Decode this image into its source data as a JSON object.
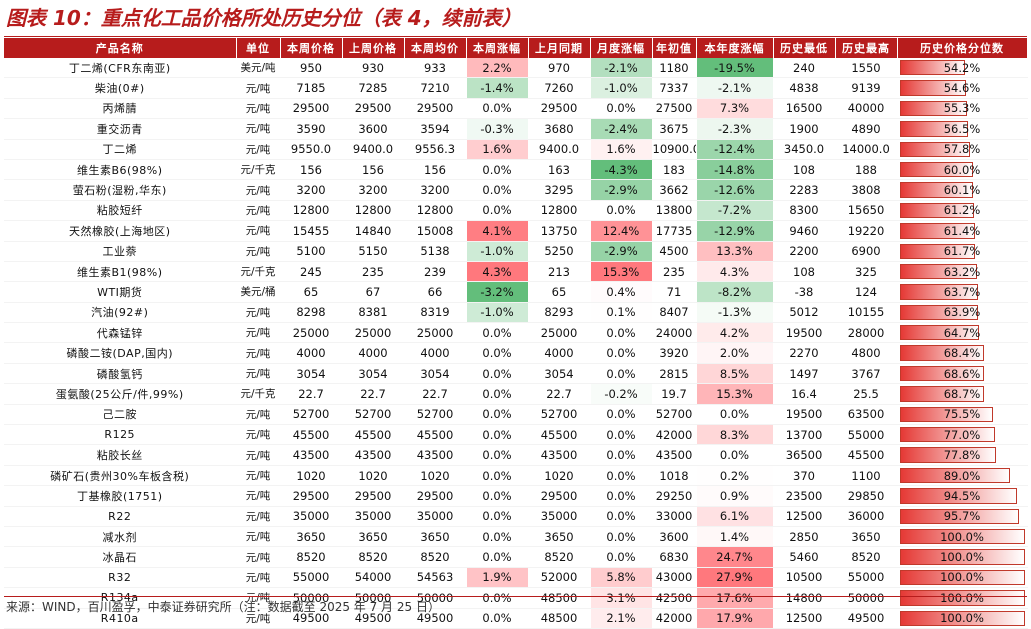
{
  "title": "图表 10：重点化工品价格所处历史分位（表 4，续前表）",
  "headers": [
    "产品名称",
    "单位",
    "本周价格",
    "上周价格",
    "本周均价",
    "本周涨幅",
    "上月同期",
    "月度涨幅",
    "年初值",
    "本年度涨幅",
    "历史最低",
    "历史最高",
    "历史价格分位数"
  ],
  "rows": [
    [
      "丁二烯(CFR东南亚)",
      "美元/吨",
      "950",
      "930",
      "933",
      "2.2%",
      "970",
      "-2.1%",
      "1180",
      "-19.5%",
      "240",
      "1550",
      "54.2%"
    ],
    [
      "柴油(0#)",
      "元/吨",
      "7185",
      "7285",
      "7210",
      "-1.4%",
      "7260",
      "-1.0%",
      "7337",
      "-2.1%",
      "4838",
      "9139",
      "54.6%"
    ],
    [
      "丙烯腈",
      "元/吨",
      "29500",
      "29500",
      "29500",
      "0.0%",
      "29500",
      "0.0%",
      "27500",
      "7.3%",
      "16500",
      "40000",
      "55.3%"
    ],
    [
      "重交沥青",
      "元/吨",
      "3590",
      "3600",
      "3594",
      "-0.3%",
      "3680",
      "-2.4%",
      "3675",
      "-2.3%",
      "1900",
      "4890",
      "56.5%"
    ],
    [
      "丁二烯",
      "元/吨",
      "9550.0",
      "9400.0",
      "9556.3",
      "1.6%",
      "9400.0",
      "1.6%",
      "10900.0",
      "-12.4%",
      "3450.0",
      "14000.0",
      "57.8%"
    ],
    [
      "维生素B6(98%)",
      "元/千克",
      "156",
      "156",
      "156",
      "0.0%",
      "163",
      "-4.3%",
      "183",
      "-14.8%",
      "108",
      "188",
      "60.0%"
    ],
    [
      "萤石粉(湿粉,华东)",
      "元/吨",
      "3200",
      "3200",
      "3200",
      "0.0%",
      "3295",
      "-2.9%",
      "3662",
      "-12.6%",
      "2283",
      "3808",
      "60.1%"
    ],
    [
      "粘胶短纤",
      "元/吨",
      "12800",
      "12800",
      "12800",
      "0.0%",
      "12800",
      "0.0%",
      "13800",
      "-7.2%",
      "8300",
      "15650",
      "61.2%"
    ],
    [
      "天然橡胶(上海地区)",
      "元/吨",
      "15455",
      "14840",
      "15008",
      "4.1%",
      "13750",
      "12.4%",
      "17735",
      "-12.9%",
      "9460",
      "19220",
      "61.4%"
    ],
    [
      "工业萘",
      "元/吨",
      "5100",
      "5150",
      "5138",
      "-1.0%",
      "5250",
      "-2.9%",
      "4500",
      "13.3%",
      "2200",
      "6900",
      "61.7%"
    ],
    [
      "维生素B1(98%)",
      "元/千克",
      "245",
      "235",
      "239",
      "4.3%",
      "213",
      "15.3%",
      "235",
      "4.3%",
      "108",
      "325",
      "63.2%"
    ],
    [
      "WTI期货",
      "美元/桶",
      "65",
      "67",
      "66",
      "-3.2%",
      "65",
      "0.4%",
      "71",
      "-8.2%",
      "-38",
      "124",
      "63.7%"
    ],
    [
      "汽油(92#)",
      "元/吨",
      "8298",
      "8381",
      "8319",
      "-1.0%",
      "8293",
      "0.1%",
      "8407",
      "-1.3%",
      "5012",
      "10155",
      "63.9%"
    ],
    [
      "代森锰锌",
      "元/吨",
      "25000",
      "25000",
      "25000",
      "0.0%",
      "25000",
      "0.0%",
      "24000",
      "4.2%",
      "19500",
      "28000",
      "64.7%"
    ],
    [
      "磷酸二铵(DAP,国内)",
      "元/吨",
      "4000",
      "4000",
      "4000",
      "0.0%",
      "4000",
      "0.0%",
      "3920",
      "2.0%",
      "2270",
      "4800",
      "68.4%"
    ],
    [
      "磷酸氢钙",
      "元/吨",
      "3054",
      "3054",
      "3054",
      "0.0%",
      "3054",
      "0.0%",
      "2815",
      "8.5%",
      "1497",
      "3767",
      "68.6%"
    ],
    [
      "蛋氨酸(25公斤/件,99%)",
      "元/千克",
      "22.7",
      "22.7",
      "22.7",
      "0.0%",
      "22.7",
      "-0.2%",
      "19.7",
      "15.3%",
      "16.4",
      "25.5",
      "68.7%"
    ],
    [
      "己二胺",
      "元/吨",
      "52700",
      "52700",
      "52700",
      "0.0%",
      "52700",
      "0.0%",
      "52700",
      "0.0%",
      "19500",
      "63500",
      "75.5%"
    ],
    [
      "R125",
      "元/吨",
      "45500",
      "45500",
      "45500",
      "0.0%",
      "45500",
      "0.0%",
      "42000",
      "8.3%",
      "13700",
      "55000",
      "77.0%"
    ],
    [
      "粘胶长丝",
      "元/吨",
      "43500",
      "43500",
      "43500",
      "0.0%",
      "43500",
      "0.0%",
      "43500",
      "0.0%",
      "36500",
      "45500",
      "77.8%"
    ],
    [
      "磷矿石(贵州30%车板含税)",
      "元/吨",
      "1020",
      "1020",
      "1020",
      "0.0%",
      "1020",
      "0.0%",
      "1018",
      "0.2%",
      "370",
      "1100",
      "89.0%"
    ],
    [
      "丁基橡胶(1751)",
      "元/吨",
      "29500",
      "29500",
      "29500",
      "0.0%",
      "29500",
      "0.0%",
      "29250",
      "0.9%",
      "23500",
      "29850",
      "94.5%"
    ],
    [
      "R22",
      "元/吨",
      "35000",
      "35000",
      "35000",
      "0.0%",
      "35000",
      "0.0%",
      "33000",
      "6.1%",
      "12500",
      "36000",
      "95.7%"
    ],
    [
      "减水剂",
      "元/吨",
      "3650",
      "3650",
      "3650",
      "0.0%",
      "3650",
      "0.0%",
      "3600",
      "1.4%",
      "2850",
      "3650",
      "100.0%"
    ],
    [
      "冰晶石",
      "元/吨",
      "8520",
      "8520",
      "8520",
      "0.0%",
      "8520",
      "0.0%",
      "6830",
      "24.7%",
      "5460",
      "8520",
      "100.0%"
    ],
    [
      "R32",
      "元/吨",
      "55000",
      "54000",
      "54563",
      "1.9%",
      "52000",
      "5.8%",
      "43000",
      "27.9%",
      "10500",
      "55000",
      "100.0%"
    ],
    [
      "R134a",
      "元/吨",
      "50000",
      "50000",
      "50000",
      "0.0%",
      "48500",
      "3.1%",
      "42500",
      "17.6%",
      "14800",
      "50000",
      "100.0%"
    ],
    [
      "R410a",
      "元/吨",
      "49500",
      "49500",
      "49500",
      "0.0%",
      "48500",
      "2.1%",
      "42000",
      "17.9%",
      "12500",
      "49500",
      "100.0%"
    ]
  ],
  "percentile_fraction": [
    0.542,
    0.546,
    0.553,
    0.565,
    0.578,
    0.6,
    0.601,
    0.612,
    0.614,
    0.617,
    0.632,
    0.637,
    0.639,
    0.647,
    0.684,
    0.686,
    0.687,
    0.755,
    0.77,
    0.778,
    0.89,
    0.945,
    0.957,
    1.0,
    1.0,
    1.0,
    1.0,
    1.0
  ],
  "colors": {
    "header_bg": "#b71c1c",
    "title": "#b71c1c",
    "pos_strong": "#f4878a",
    "neg_strong": "#6cbf78",
    "percentile_bar": "#e53935"
  },
  "source": "来源：WIND，百川盈孚，中泰证券研究所（注：数据截至 2025 年 7 月 25 日）"
}
